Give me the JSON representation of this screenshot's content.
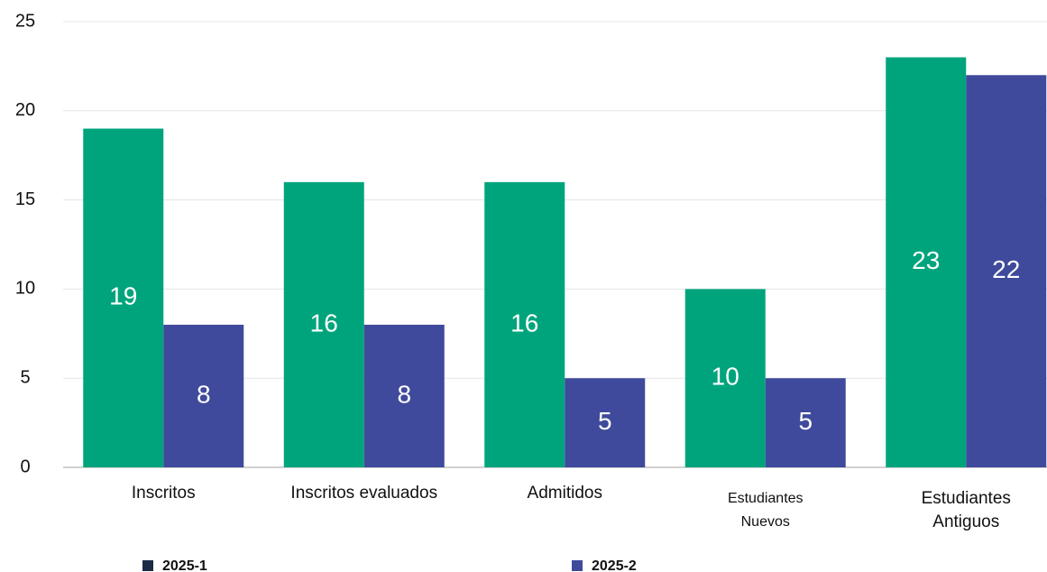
{
  "chart_data": {
    "type": "bar",
    "categories": [
      "Inscritos",
      "Inscritos evaluados",
      "Admitidos",
      [
        "Estudiantes",
        "Nuevos"
      ],
      [
        "Estudiantes",
        "Antiguos"
      ]
    ],
    "series": [
      {
        "name": "2025-1",
        "color": "#00a47c",
        "legend_color": "#1c2b45",
        "values": [
          19,
          16,
          16,
          10,
          23
        ]
      },
      {
        "name": "2025-2",
        "color": "#3f4a9c",
        "legend_color": "#3f4a9c",
        "values": [
          8,
          8,
          5,
          5,
          22
        ]
      }
    ],
    "ylim": [
      0,
      25
    ],
    "yticks": [
      0,
      5,
      10,
      15,
      20,
      25
    ],
    "grid": true
  }
}
